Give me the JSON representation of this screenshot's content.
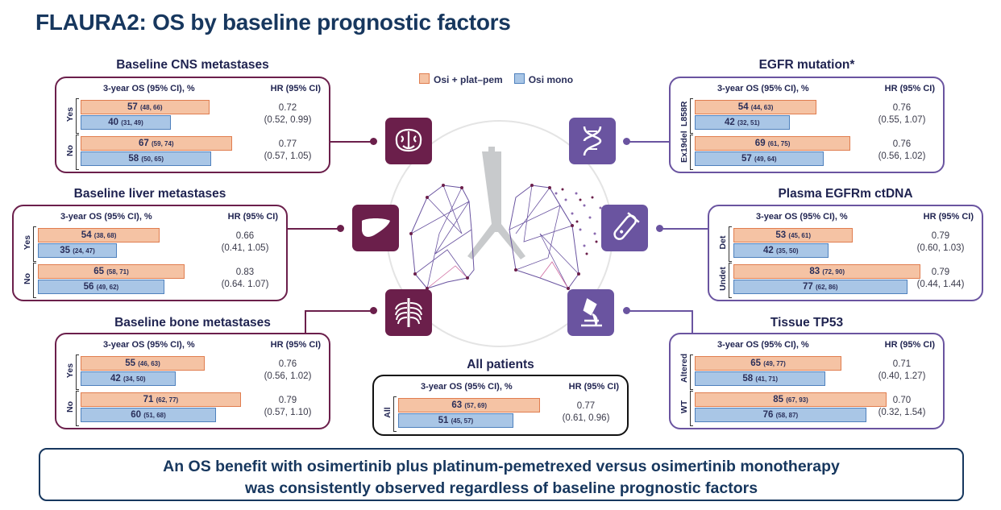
{
  "title": "FLAURA2: OS by baseline prognostic factors",
  "legend": {
    "combo": "Osi + plat–pem",
    "mono": "Osi mono",
    "combo_color": "#f5c3a4",
    "mono_color": "#a9c6e6"
  },
  "headers": {
    "os": "3-year OS (95% CI), %",
    "hr": "HR (95% CI)"
  },
  "conclusion": {
    "line1": "An OS benefit with osimertinib plus platinum-pemetrexed versus osimertinib monotherapy",
    "line2": "was consistently observed regardless of baseline prognostic factors"
  },
  "chart_data": [
    {
      "type": "bar",
      "title": "Baseline CNS metastases",
      "categories": [
        "Yes",
        "No"
      ],
      "series": [
        {
          "name": "Osi + plat–pem",
          "values": [
            57,
            67
          ],
          "ci": [
            "(48, 66)",
            "(59, 74)"
          ]
        },
        {
          "name": "Osi mono",
          "values": [
            40,
            58
          ],
          "ci": [
            "(31, 49)",
            "(50, 65)"
          ]
        }
      ],
      "hr": [
        "0.72",
        "0.77"
      ],
      "hr_ci": [
        "(0.52, 0.99)",
        "(0.57, 1.05)"
      ],
      "xlim": [
        0,
        100
      ]
    },
    {
      "type": "bar",
      "title": "Baseline liver metastases",
      "categories": [
        "Yes",
        "No"
      ],
      "series": [
        {
          "name": "Osi + plat–pem",
          "values": [
            54,
            65
          ],
          "ci": [
            "(38, 68)",
            "(58, 71)"
          ]
        },
        {
          "name": "Osi mono",
          "values": [
            35,
            56
          ],
          "ci": [
            "(24, 47)",
            "(49, 62)"
          ]
        }
      ],
      "hr": [
        "0.66",
        "0.83"
      ],
      "hr_ci": [
        "(0.41, 1.05)",
        "(0.64. 1.07)"
      ],
      "xlim": [
        0,
        100
      ]
    },
    {
      "type": "bar",
      "title": "Baseline bone metastases",
      "categories": [
        "Yes",
        "No"
      ],
      "series": [
        {
          "name": "Osi + plat–pem",
          "values": [
            55,
            71
          ],
          "ci": [
            "(46, 63)",
            "(62, 77)"
          ]
        },
        {
          "name": "Osi mono",
          "values": [
            42,
            60
          ],
          "ci": [
            "(34, 50)",
            "(51, 68)"
          ]
        }
      ],
      "hr": [
        "0.76",
        "0.79"
      ],
      "hr_ci": [
        "(0.56, 1.02)",
        "(0.57, 1.10)"
      ],
      "xlim": [
        0,
        100
      ]
    },
    {
      "type": "bar",
      "title": "EGFR mutation*",
      "categories": [
        "L858R",
        "Ex19del"
      ],
      "series": [
        {
          "name": "Osi + plat–pem",
          "values": [
            54,
            69
          ],
          "ci": [
            "(44, 63)",
            "(61, 75)"
          ]
        },
        {
          "name": "Osi mono",
          "values": [
            42,
            57
          ],
          "ci": [
            "(32, 51)",
            "(49, 64)"
          ]
        }
      ],
      "hr": [
        "0.76",
        "0.76"
      ],
      "hr_ci": [
        "(0.55, 1.07)",
        "(0.56, 1.02)"
      ],
      "xlim": [
        0,
        100
      ]
    },
    {
      "type": "bar",
      "title": "Plasma EGFRm ctDNA",
      "categories": [
        "Det",
        "Undet"
      ],
      "series": [
        {
          "name": "Osi + plat–pem",
          "values": [
            53,
            83
          ],
          "ci": [
            "(45, 61)",
            "(72, 90)"
          ]
        },
        {
          "name": "Osi mono",
          "values": [
            42,
            77
          ],
          "ci": [
            "(35, 50)",
            "(62, 86)"
          ]
        }
      ],
      "hr": [
        "0.79",
        "0.79"
      ],
      "hr_ci": [
        "(0.60, 1.03)",
        "(0.44, 1.44)"
      ],
      "xlim": [
        0,
        100
      ]
    },
    {
      "type": "bar",
      "title": "Tissue TP53",
      "categories": [
        "Altered",
        "WT"
      ],
      "series": [
        {
          "name": "Osi + plat–pem",
          "values": [
            65,
            85
          ],
          "ci": [
            "(49, 77)",
            "(67, 93)"
          ]
        },
        {
          "name": "Osi mono",
          "values": [
            58,
            76
          ],
          "ci": [
            "(41, 71)",
            "(58, 87)"
          ]
        }
      ],
      "hr": [
        "0.71",
        "0.70"
      ],
      "hr_ci": [
        "(0.40, 1.27)",
        "(0.32, 1.54)"
      ],
      "xlim": [
        0,
        100
      ]
    },
    {
      "type": "bar",
      "title": "All patients",
      "categories": [
        "All"
      ],
      "series": [
        {
          "name": "Osi + plat–pem",
          "values": [
            63
          ],
          "ci": [
            "(57, 69)"
          ]
        },
        {
          "name": "Osi mono",
          "values": [
            51
          ],
          "ci": [
            "(45, 57)"
          ]
        }
      ],
      "hr": [
        "0.77"
      ],
      "hr_ci": [
        "(0.61, 0.96)"
      ],
      "xlim": [
        0,
        100
      ]
    }
  ]
}
